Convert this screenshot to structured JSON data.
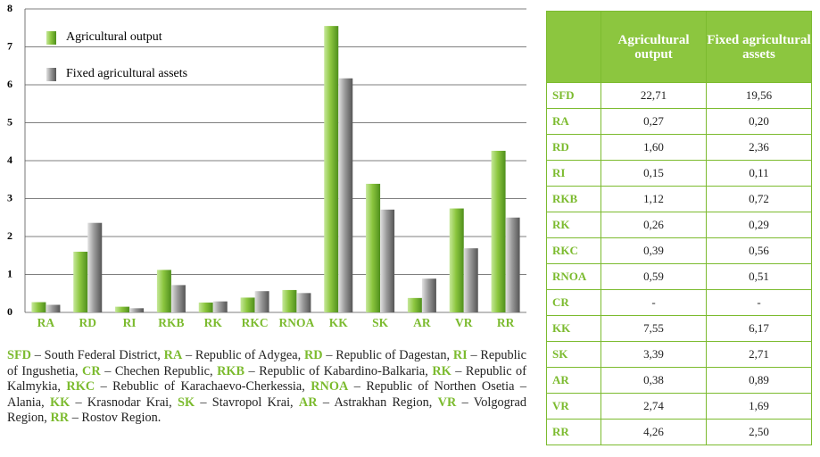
{
  "chart_data": {
    "type": "bar",
    "categories": [
      "RA",
      "RD",
      "RI",
      "RKB",
      "RK",
      "RKC",
      "RNOA",
      "KK",
      "SK",
      "AR",
      "VR",
      "RR"
    ],
    "series": [
      {
        "name": "Agricultural output",
        "color": "#8cc63f",
        "values": [
          0.27,
          1.6,
          0.15,
          1.12,
          0.26,
          0.39,
          0.59,
          7.55,
          3.39,
          0.38,
          2.74,
          4.26
        ]
      },
      {
        "name": "Fixed agricultural assets",
        "color": "#9a9a9a",
        "values": [
          0.2,
          2.36,
          0.11,
          0.72,
          0.29,
          0.56,
          0.51,
          6.17,
          2.71,
          0.89,
          1.69,
          2.5
        ]
      }
    ],
    "ylim": [
      0,
      8
    ],
    "yticks": [
      0,
      1,
      2,
      3,
      4,
      5,
      6,
      7,
      8
    ],
    "grid": true,
    "legend": "top-left"
  },
  "table": {
    "header": [
      "Agricultural output",
      "Fixed agricultural assets"
    ],
    "rows": [
      [
        "SFD",
        "22,71",
        "19,56"
      ],
      [
        "RA",
        "0,27",
        "0,20"
      ],
      [
        "RD",
        "1,60",
        "2,36"
      ],
      [
        "RI",
        "0,15",
        "0,11"
      ],
      [
        "RKB",
        "1,12",
        "0,72"
      ],
      [
        "RK",
        "0,26",
        "0,29"
      ],
      [
        "RKC",
        "0,39",
        "0,56"
      ],
      [
        "RNOA",
        "0,59",
        "0,51"
      ],
      [
        "CR",
        "-",
        "-"
      ],
      [
        "KK",
        "7,55",
        "6,17"
      ],
      [
        "SK",
        "3,39",
        "2,71"
      ],
      [
        "AR",
        "0,38",
        "0,89"
      ],
      [
        "VR",
        "2,74",
        "1,69"
      ],
      [
        "RR",
        "4,26",
        "2,50"
      ]
    ]
  },
  "footnote": [
    {
      "abbr": "SFD",
      "text": "– South Federal District,"
    },
    {
      "abbr": "RA",
      "text": "– Republic of Adygea,"
    },
    {
      "abbr": "RD",
      "text": "– Republic of Dagestan,"
    },
    {
      "abbr": "RI",
      "text": "– Republic of Ingushetia,"
    },
    {
      "abbr": "CR",
      "text": "– Chechen Republic,"
    },
    {
      "abbr": "RKB",
      "text": "– Republic of Kabardino-Balkaria,"
    },
    {
      "abbr": "RK",
      "text": "– Republic of Kalmykia,"
    },
    {
      "abbr": "RKC",
      "text": "– Rebublic of Karachaevo-Cherkessia,"
    },
    {
      "abbr": "RNOA",
      "text": "– Republic of Northen Osetia –Alania,"
    },
    {
      "abbr": "KK",
      "text": "– Krasnodar Krai,"
    },
    {
      "abbr": "SK",
      "text": "– Stavropol Krai,"
    },
    {
      "abbr": "AR",
      "text": "– Astrakhan Region,"
    },
    {
      "abbr": "VR",
      "text": "– Volgograd Region,"
    },
    {
      "abbr": "RR",
      "text": "– Rostov Region."
    }
  ]
}
